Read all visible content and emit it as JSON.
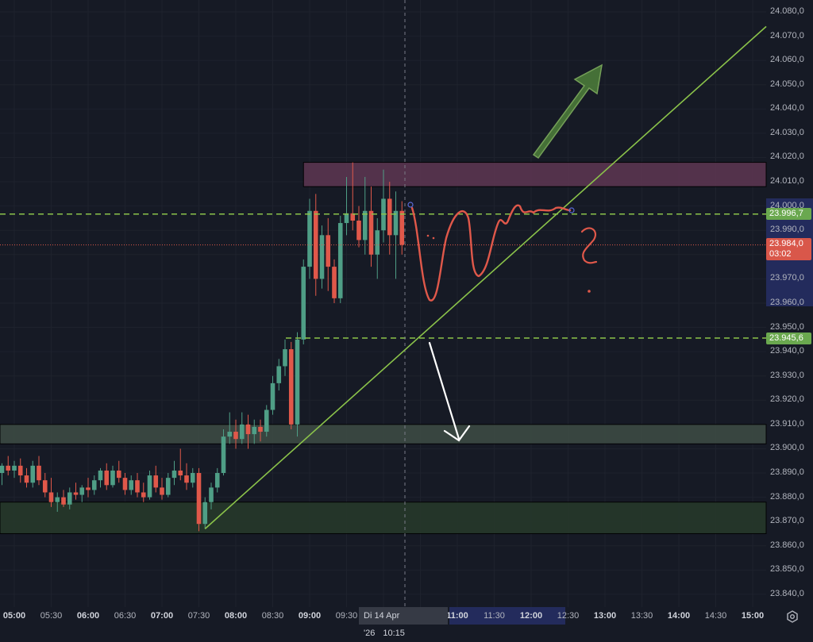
{
  "colors": {
    "bg": "#161a25",
    "up": "#4f9e86",
    "down": "#e0584a",
    "accent_green": "#8bc34a",
    "tag_green": "#6aa84f",
    "tag_red": "#d9574a",
    "selection": "#232b5c"
  },
  "price_axis": {
    "labels": [
      "24.080,0",
      "24.070,0",
      "24.060,0",
      "24.050,0",
      "24.040,0",
      "24.030,0",
      "24.020,0",
      "24.010,0",
      "24.000,0",
      "23.990,0",
      "23.970,0",
      "23.960,0",
      "23.950,0",
      "23.940,0",
      "23.930,0",
      "23.920,0",
      "23.910,0",
      "23.900,0",
      "23.890,0",
      "23.880,0",
      "23.870,0",
      "23.860,0",
      "23.850,0",
      "23.840,0"
    ],
    "label_values": [
      24080,
      24070,
      24060,
      24050,
      24040,
      24030,
      24020,
      24010,
      24000,
      23990,
      23970,
      23960,
      23950,
      23940,
      23930,
      23920,
      23910,
      23900,
      23890,
      23880,
      23870,
      23860,
      23850,
      23840
    ]
  },
  "tags": {
    "level_upper": "23.996,7",
    "level_upper_value": 23996.7,
    "current_price": "23.984,0",
    "current_value": 23984.0,
    "countdown": "03:02",
    "level_lower": "23.945,6",
    "level_lower_value": 23945.6
  },
  "time_axis": {
    "labels": [
      {
        "text": "05:00",
        "min": 0,
        "bold": true
      },
      {
        "text": "05:30",
        "min": 30
      },
      {
        "text": "06:00",
        "min": 60,
        "bold": true
      },
      {
        "text": "06:30",
        "min": 90
      },
      {
        "text": "07:00",
        "min": 120,
        "bold": true
      },
      {
        "text": "07:30",
        "min": 150
      },
      {
        "text": "08:00",
        "min": 180,
        "bold": true
      },
      {
        "text": "08:30",
        "min": 210
      },
      {
        "text": "09:00",
        "min": 240,
        "bold": true
      },
      {
        "text": "09:30",
        "min": 270
      },
      {
        "text": "11:00",
        "min": 360,
        "bold": true
      },
      {
        "text": "11:30",
        "min": 390
      },
      {
        "text": "12:00",
        "min": 420,
        "bold": true
      },
      {
        "text": "12:30",
        "min": 450
      },
      {
        "text": "13:00",
        "min": 480,
        "bold": true
      },
      {
        "text": "13:30",
        "min": 510
      },
      {
        "text": "14:00",
        "min": 540,
        "bold": true
      },
      {
        "text": "14:30",
        "min": 570
      },
      {
        "text": "15:00",
        "min": 600,
        "bold": true
      }
    ],
    "crosshair_date": "Di 14 Apr '26",
    "crosshair_time": "10:15"
  },
  "candles_start_min": -10,
  "candles": [
    [
      23890,
      23894,
      23885,
      23893
    ],
    [
      23893,
      23897,
      23889,
      23891
    ],
    [
      23891,
      23895,
      23888,
      23893
    ],
    [
      23893,
      23896,
      23886,
      23889
    ],
    [
      23889,
      23892,
      23884,
      23886
    ],
    [
      23886,
      23895,
      23884,
      23893
    ],
    [
      23893,
      23897,
      23885,
      23887
    ],
    [
      23887,
      23890,
      23880,
      23882
    ],
    [
      23882,
      23888,
      23876,
      23878
    ],
    [
      23878,
      23882,
      23874,
      23880
    ],
    [
      23880,
      23883,
      23876,
      23877
    ],
    [
      23877,
      23884,
      23875,
      23882
    ],
    [
      23882,
      23886,
      23879,
      23881
    ],
    [
      23881,
      23885,
      23878,
      23884
    ],
    [
      23884,
      23888,
      23880,
      23883
    ],
    [
      23883,
      23889,
      23881,
      23887
    ],
    [
      23887,
      23892,
      23884,
      23891
    ],
    [
      23891,
      23894,
      23883,
      23885
    ],
    [
      23885,
      23893,
      23884,
      23891
    ],
    [
      23891,
      23895,
      23886,
      23888
    ],
    [
      23888,
      23890,
      23881,
      23883
    ],
    [
      23883,
      23889,
      23881,
      23887
    ],
    [
      23887,
      23890,
      23880,
      23882
    ],
    [
      23882,
      23886,
      23878,
      23880
    ],
    [
      23880,
      23891,
      23879,
      23889
    ],
    [
      23889,
      23893,
      23882,
      23884
    ],
    [
      23884,
      23888,
      23879,
      23881
    ],
    [
      23881,
      23890,
      23880,
      23888
    ],
    [
      23888,
      23895,
      23885,
      23891
    ],
    [
      23891,
      23900,
      23887,
      23889
    ],
    [
      23889,
      23894,
      23883,
      23886
    ],
    [
      23886,
      23892,
      23884,
      23890
    ],
    [
      23890,
      23892,
      23866,
      23869
    ],
    [
      23869,
      23880,
      23867,
      23878
    ],
    [
      23878,
      23886,
      23875,
      23884
    ],
    [
      23884,
      23892,
      23882,
      23890
    ],
    [
      23890,
      23908,
      23889,
      23905
    ],
    [
      23905,
      23915,
      23902,
      23907
    ],
    [
      23907,
      23912,
      23900,
      23904
    ],
    [
      23904,
      23915,
      23902,
      23910
    ],
    [
      23910,
      23914,
      23900,
      23906
    ],
    [
      23906,
      23912,
      23902,
      23909
    ],
    [
      23909,
      23912,
      23903,
      23907
    ],
    [
      23907,
      23918,
      23905,
      23916
    ],
    [
      23916,
      23930,
      23914,
      23927
    ],
    [
      23927,
      23937,
      23924,
      23934
    ],
    [
      23934,
      23945,
      23930,
      23941
    ],
    [
      23941,
      23944,
      23908,
      23910
    ],
    [
      23910,
      23948,
      23905,
      23945
    ],
    [
      23945,
      23978,
      23943,
      23975
    ],
    [
      23975,
      24003,
      23970,
      23998
    ],
    [
      23998,
      24005,
      23963,
      23970
    ],
    [
      23970,
      23992,
      23966,
      23988
    ],
    [
      23988,
      23995,
      23965,
      23975
    ],
    [
      23975,
      23978,
      23960,
      23962
    ],
    [
      23962,
      23996,
      23960,
      23993
    ],
    [
      23993,
      24012,
      23988,
      23997
    ],
    [
      23997,
      24018,
      23990,
      23994
    ],
    [
      23994,
      24000,
      23983,
      23986
    ],
    [
      23986,
      24012,
      23980,
      23998
    ],
    [
      23998,
      24008,
      23975,
      23980
    ],
    [
      23980,
      23995,
      23970,
      23990
    ],
    [
      23990,
      24015,
      23985,
      24003
    ],
    [
      24003,
      24010,
      23980,
      23988
    ],
    [
      23988,
      24006,
      23970,
      23998
    ],
    [
      23998,
      24002,
      23980,
      23984
    ]
  ],
  "zones": [
    {
      "name": "resistance-zone",
      "top": 24018,
      "bottom": 24008,
      "start_min": 235,
      "color": "#5a3550"
    },
    {
      "name": "support-zone",
      "top": 23910,
      "bottom": 23902,
      "start_min": -20,
      "color": "#3c4a44"
    },
    {
      "name": "demand-zone",
      "top": 23878,
      "bottom": 23865,
      "start_min": -20,
      "color": "#26382a"
    }
  ],
  "trendline": {
    "from": {
      "min": 155,
      "price": 23867
    },
    "to": {
      "min": 611,
      "price": 24074
    }
  }
}
